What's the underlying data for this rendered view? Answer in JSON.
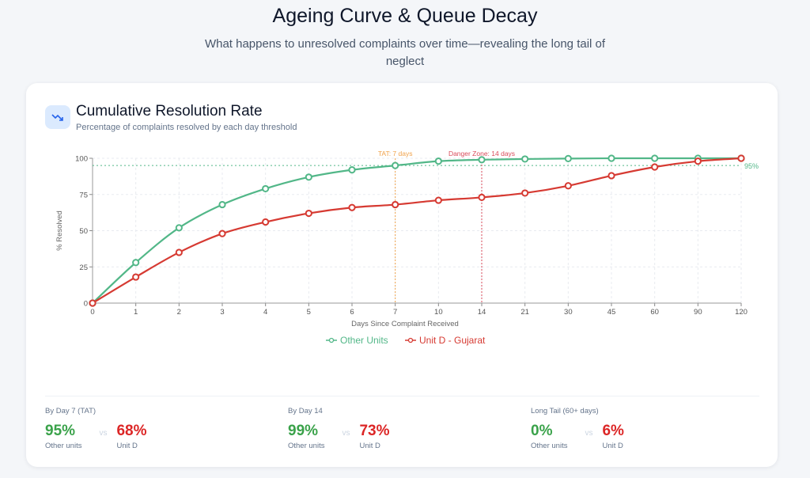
{
  "header": {
    "title": "Ageing Curve & Queue Decay",
    "subtitle": "What happens to unresolved complaints over time—revealing the long tail of neglect"
  },
  "card": {
    "title": "Cumulative Resolution Rate",
    "subtitle": "Percentage of complaints resolved by each day threshold",
    "icon": "trending-down-icon"
  },
  "colors": {
    "green": "#52b788",
    "red": "#d63a32",
    "tat": "#f0a24a",
    "danger": "#d94a5a",
    "accent": "#2563eb"
  },
  "chart_data": {
    "type": "line",
    "title": "Cumulative Resolution Rate",
    "xlabel": "Days Since Complaint Received",
    "ylabel": "% Resolved",
    "x": [
      "0",
      "1",
      "2",
      "3",
      "4",
      "5",
      "6",
      "7",
      "10",
      "14",
      "21",
      "30",
      "45",
      "60",
      "90",
      "120"
    ],
    "ylim": [
      0,
      100
    ],
    "yticks": [
      "0",
      "25",
      "50",
      "75",
      "100"
    ],
    "grid": true,
    "legend_position": "bottom-center",
    "series": [
      {
        "name": "Other Units",
        "values": [
          0,
          28,
          52,
          68,
          79,
          87,
          92,
          95,
          98,
          99,
          99.5,
          99.8,
          100,
          100,
          100,
          100
        ]
      },
      {
        "name": "Unit D - Gujarat",
        "values": [
          0,
          18,
          35,
          48,
          56,
          62,
          66,
          68,
          71,
          73,
          76,
          81,
          88,
          94,
          98,
          100
        ]
      }
    ],
    "annotations": [
      {
        "label": "TAT: 7 days",
        "x": "7"
      },
      {
        "label": "Danger Zone: 14 days",
        "x": "14"
      },
      {
        "label": "95%",
        "y": 95
      }
    ]
  },
  "stats": [
    {
      "label": "By Day 7 (TAT)",
      "a": "95%",
      "a_sub": "Other units",
      "vs": "vs",
      "b": "68%",
      "b_sub": "Unit D"
    },
    {
      "label": "By Day 14",
      "a": "99%",
      "a_sub": "Other units",
      "vs": "vs",
      "b": "73%",
      "b_sub": "Unit D"
    },
    {
      "label": "Long Tail (60+ days)",
      "a": "0%",
      "a_sub": "Other units",
      "vs": "vs",
      "b": "6%",
      "b_sub": "Unit D"
    }
  ]
}
